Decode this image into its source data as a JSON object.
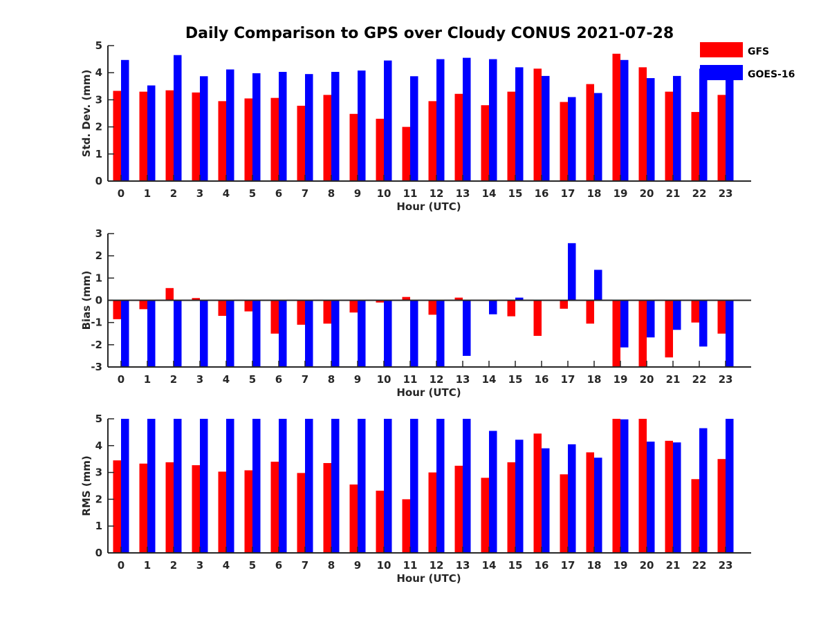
{
  "title": "Daily Comparison to GPS over Cloudy CONUS 2021-07-28",
  "legend": [
    {
      "name": "GFS",
      "color": "#ff0000"
    },
    {
      "name": "GOES-16",
      "color": "#0000ff"
    }
  ],
  "chart_data": [
    {
      "type": "bar",
      "xlabel": "Hour (UTC)",
      "ylabel": "Std. Dev. (mm)",
      "ylim": [
        0,
        5
      ],
      "yticks": [
        0,
        1,
        2,
        3,
        4,
        5
      ],
      "categories": [
        "0",
        "1",
        "2",
        "3",
        "4",
        "5",
        "6",
        "7",
        "8",
        "9",
        "10",
        "11",
        "12",
        "13",
        "14",
        "15",
        "16",
        "17",
        "18",
        "19",
        "20",
        "21",
        "22",
        "23"
      ],
      "series": [
        {
          "name": "GFS",
          "color": "#ff0000",
          "values": [
            3.33,
            3.3,
            3.35,
            3.27,
            2.95,
            3.05,
            3.07,
            2.78,
            3.18,
            2.48,
            2.3,
            2.0,
            2.95,
            3.22,
            2.8,
            3.3,
            4.15,
            2.92,
            3.58,
            4.7,
            4.2,
            3.3,
            2.55,
            3.18
          ]
        },
        {
          "name": "GOES-16",
          "color": "#0000ff",
          "values": [
            4.47,
            3.53,
            4.65,
            3.87,
            4.12,
            3.98,
            4.03,
            3.95,
            4.03,
            4.08,
            4.45,
            3.87,
            4.5,
            4.55,
            4.5,
            4.2,
            3.88,
            3.1,
            3.25,
            4.47,
            3.8,
            3.88,
            4.15,
            4.18
          ]
        }
      ]
    },
    {
      "type": "bar",
      "xlabel": "Hour (UTC)",
      "ylabel": "Bias (mm)",
      "ylim": [
        -3,
        3
      ],
      "yticks": [
        -3,
        -2,
        -1,
        0,
        1,
        2,
        3
      ],
      "categories": [
        "0",
        "1",
        "2",
        "3",
        "4",
        "5",
        "6",
        "7",
        "8",
        "9",
        "10",
        "11",
        "12",
        "13",
        "14",
        "15",
        "16",
        "17",
        "18",
        "19",
        "20",
        "21",
        "22",
        "23"
      ],
      "series": [
        {
          "name": "GFS",
          "color": "#ff0000",
          "values": [
            -0.85,
            -0.4,
            0.55,
            0.1,
            -0.7,
            -0.5,
            -1.5,
            -1.1,
            -1.05,
            -0.55,
            -0.1,
            0.15,
            -0.65,
            0.12,
            0.02,
            -0.72,
            -1.6,
            -0.38,
            -1.05,
            -3.0,
            -3.0,
            -2.57,
            -1.0,
            -1.5
          ]
        },
        {
          "name": "GOES-16",
          "color": "#0000ff",
          "values": [
            -3.0,
            -3.0,
            -3.0,
            -3.0,
            -3.0,
            -3.0,
            -3.0,
            -3.0,
            -3.0,
            -3.0,
            -3.0,
            -3.0,
            -3.0,
            -2.5,
            -0.63,
            0.12,
            0.0,
            2.57,
            1.37,
            -2.12,
            -1.67,
            -1.33,
            -2.08,
            -3.0
          ]
        }
      ]
    },
    {
      "type": "bar",
      "xlabel": "Hour (UTC)",
      "ylabel": "RMS (mm)",
      "ylim": [
        0,
        5
      ],
      "yticks": [
        0,
        1,
        2,
        3,
        4,
        5
      ],
      "categories": [
        "0",
        "1",
        "2",
        "3",
        "4",
        "5",
        "6",
        "7",
        "8",
        "9",
        "10",
        "11",
        "12",
        "13",
        "14",
        "15",
        "16",
        "17",
        "18",
        "19",
        "20",
        "21",
        "22",
        "23"
      ],
      "series": [
        {
          "name": "GFS",
          "color": "#ff0000",
          "values": [
            3.45,
            3.33,
            3.38,
            3.27,
            3.03,
            3.08,
            3.4,
            2.98,
            3.35,
            2.55,
            2.32,
            2.0,
            3.0,
            3.25,
            2.8,
            3.38,
            4.45,
            2.93,
            3.75,
            5.0,
            5.0,
            4.18,
            2.75,
            3.5
          ]
        },
        {
          "name": "GOES-16",
          "color": "#0000ff",
          "values": [
            5.0,
            5.0,
            5.0,
            5.0,
            5.0,
            5.0,
            5.0,
            5.0,
            5.0,
            5.0,
            5.0,
            5.0,
            5.0,
            5.0,
            4.55,
            4.22,
            3.9,
            4.05,
            3.55,
            4.98,
            4.15,
            4.12,
            4.65,
            5.0
          ]
        }
      ]
    }
  ]
}
